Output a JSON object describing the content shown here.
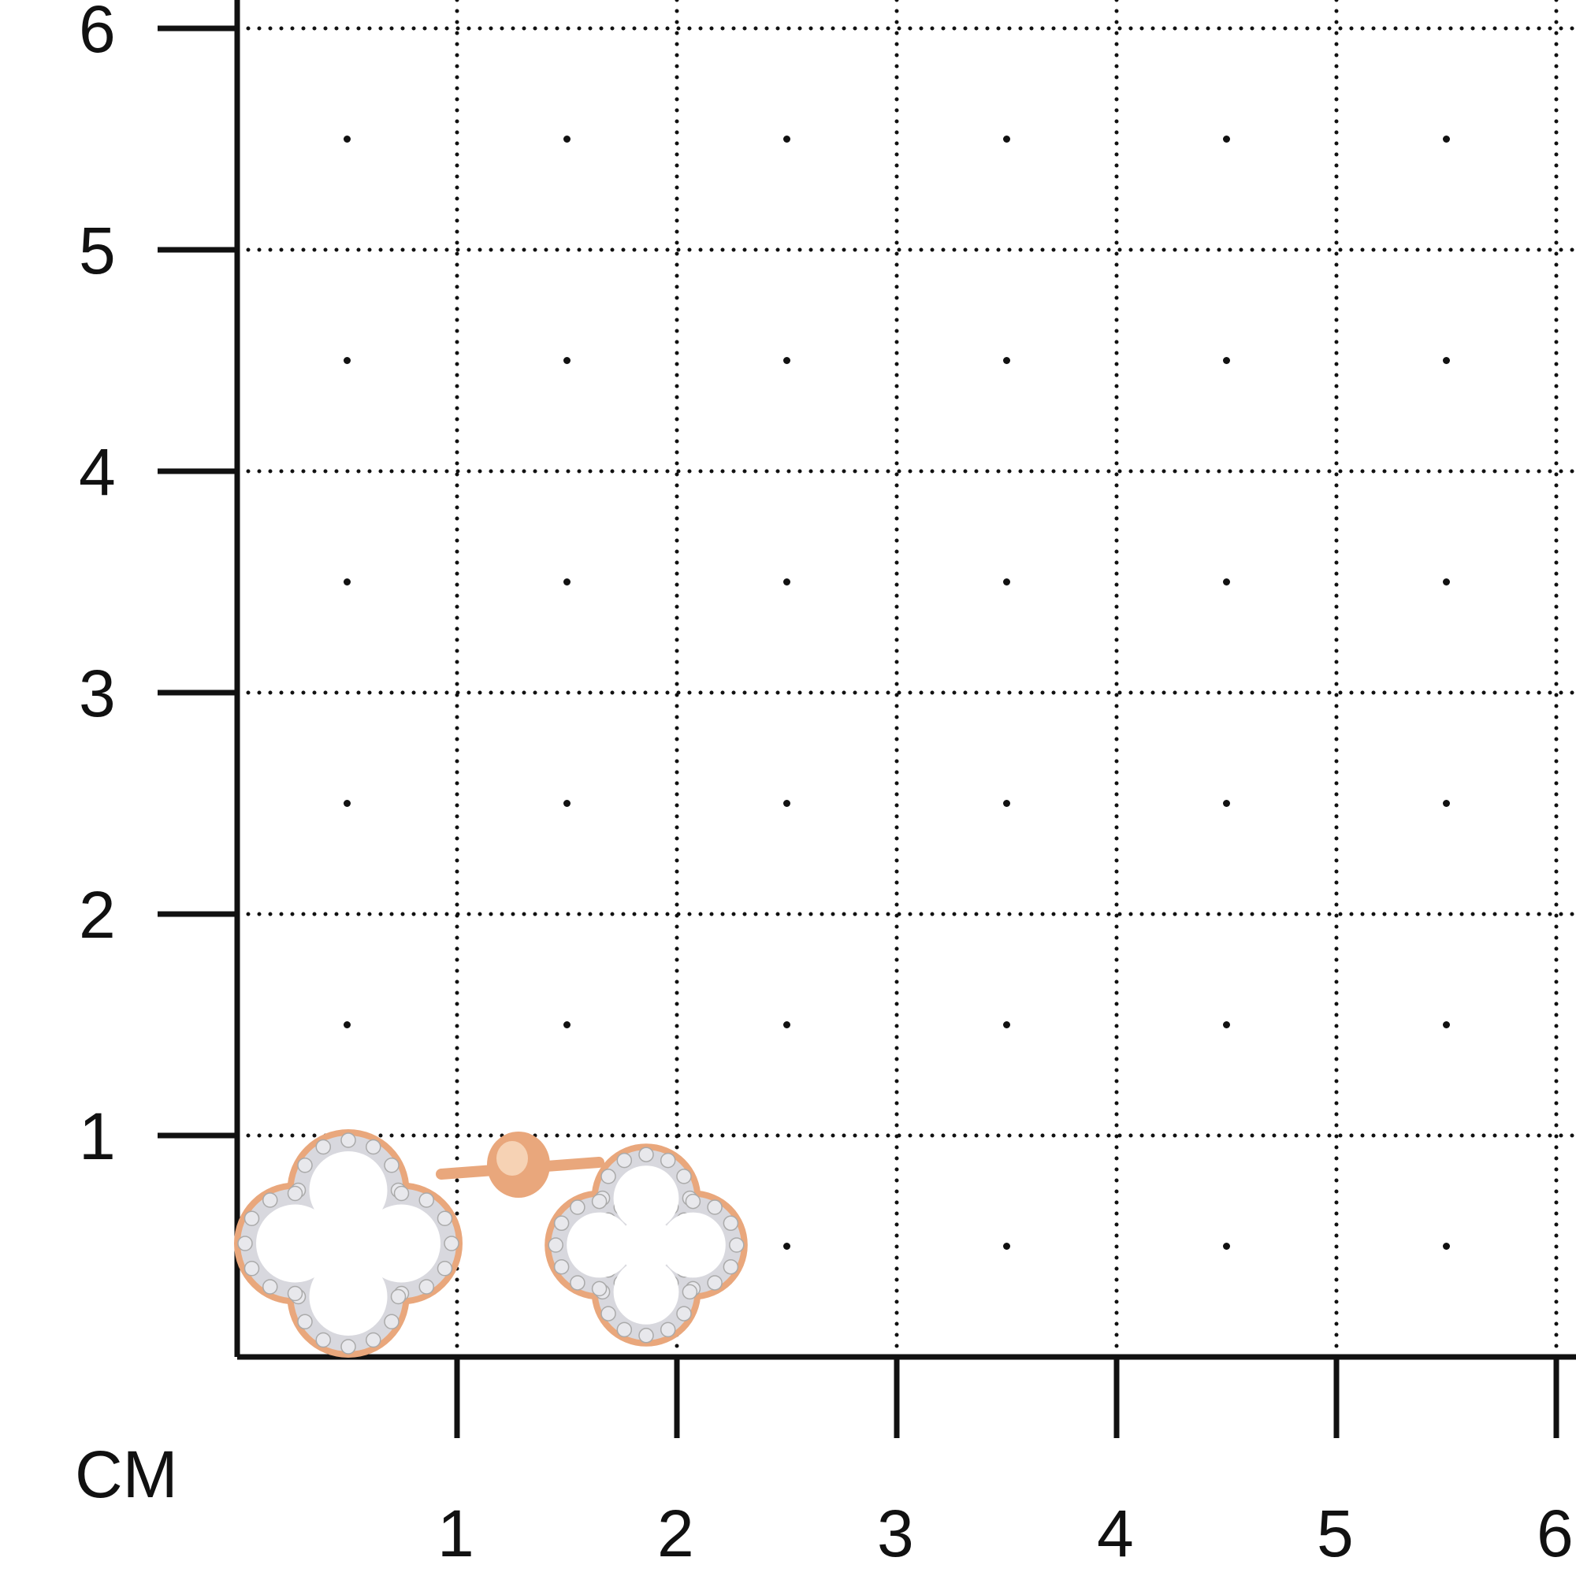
{
  "scale": {
    "unit_label": "CM",
    "y_ticks": [
      "1",
      "2",
      "3",
      "4",
      "5",
      "6"
    ],
    "x_ticks": [
      "1",
      "2",
      "3",
      "4",
      "5",
      "6"
    ]
  },
  "product": {
    "description_icon": "clover-stud-earrings",
    "metal_color": "#e9a77c",
    "stone_color": "#e8e8ec"
  },
  "colors": {
    "grid": "#111111",
    "background": "#ffffff"
  }
}
